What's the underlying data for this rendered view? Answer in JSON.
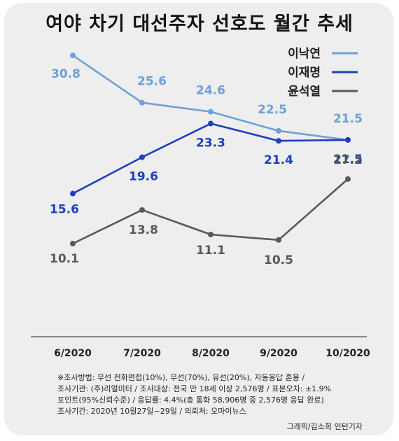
{
  "chart_data": {
    "type": "line",
    "title": "여야 차기 대선주자 선호도 월간 추세",
    "categories": [
      "6/2020",
      "7/2020",
      "8/2020",
      "9/2020",
      "10/2020"
    ],
    "ylim": [
      6,
      34
    ],
    "grid": false,
    "legend": "top-right",
    "series": [
      {
        "name": "이낙연",
        "color": "#6fa0d6",
        "values": [
          30.8,
          25.6,
          24.6,
          22.5,
          21.5
        ],
        "labels": [
          "30.8",
          "25.6",
          "24.6",
          "22.5",
          "21.5"
        ]
      },
      {
        "name": "이재명",
        "color": "#1f3fbf",
        "values": [
          15.6,
          19.6,
          23.3,
          21.4,
          21.5
        ],
        "labels": [
          "15.6",
          "19.6",
          "23.3",
          "21.4",
          "21.5"
        ]
      },
      {
        "name": "윤석열",
        "color": "#595959",
        "values": [
          10.1,
          13.8,
          11.1,
          10.5,
          17.2
        ],
        "labels": [
          "10.1",
          "13.8",
          "11.1",
          "10.5",
          "17.2"
        ]
      }
    ]
  },
  "footnote": [
    "※조사방법: 무선 전화면접(10%), 무선(70%), 유선(20%), 자동응답 혼용 /",
    "조사기관: (주)리얼미터 / 조사대상: 전국 만 18세 이상 2,576명 / 표본오차: ±1.9%",
    "포인트(95%신뢰수준) / 응답률: 4.4%(총 통화 58,906명 중 2,576명 응답 완료)",
    "조사기간: 2020년 10월27일~29일 / 의뢰처: 오마이뉴스"
  ],
  "credit": "그래픽/김소희 인턴기자"
}
